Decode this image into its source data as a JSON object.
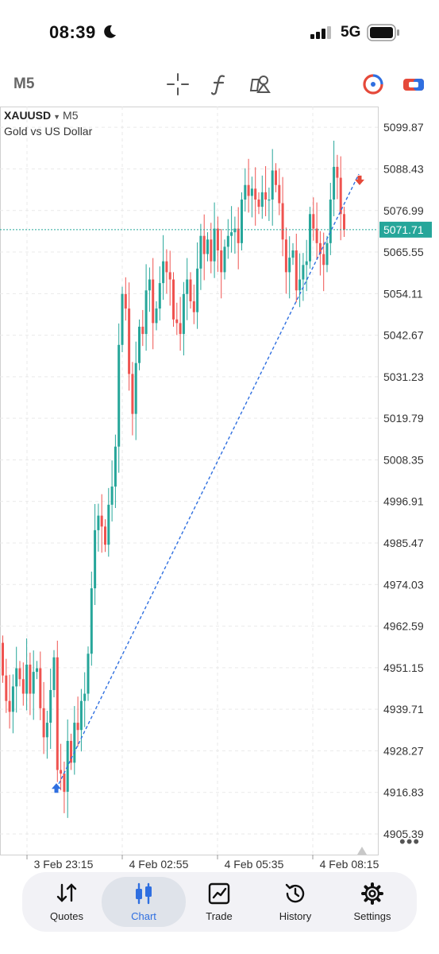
{
  "status_bar": {
    "time": "08:39",
    "network": "5G"
  },
  "toolbar": {
    "timeframe": "M5",
    "icons": [
      "crosshair-icon",
      "function-icon",
      "objects-icon",
      "one-click-trading-icon",
      "trade-panel-icon"
    ]
  },
  "chart_header": {
    "symbol": "XAUUSD",
    "period": "M5",
    "description": "Gold vs US Dollar"
  },
  "colors": {
    "bull": "#26a69a",
    "bear": "#ef5350",
    "accent": "#2f6fe0",
    "price_line": "#26a69a"
  },
  "chart_data": {
    "type": "candlestick",
    "ylim": [
      4899.7,
      5105.6
    ],
    "y_ticks": [
      "5099.87",
      "5088.43",
      "5076.99",
      "5065.55",
      "5054.11",
      "5042.67",
      "5031.23",
      "5019.79",
      "5008.35",
      "4996.91",
      "4985.47",
      "4974.03",
      "4962.59",
      "4951.15",
      "4939.71",
      "4928.27",
      "4916.83",
      "4905.39"
    ],
    "x_ticks": [
      "3 Feb 23:15",
      "4 Feb 02:55",
      "4 Feb 05:35",
      "4 Feb 08:15"
    ],
    "current_price": "5071.71",
    "trend_line": {
      "from": [
        "3 Feb 23:05",
        4917.8
      ],
      "to": [
        "4 Feb 08:30",
        5087.0
      ]
    },
    "arrows": [
      {
        "kind": "buy",
        "time": "3 Feb 23:05",
        "price": 4917.8
      },
      {
        "kind": "sell",
        "time": "4 Feb 08:30",
        "price": 5085.5
      }
    ],
    "closes": [
      4949,
      4942,
      4939,
      4946,
      4951,
      4948,
      4944,
      4952,
      4944,
      4950,
      4951,
      4940,
      4932,
      4936,
      4945,
      4954,
      4923,
      4922,
      4917,
      4931,
      4925,
      4936,
      4934,
      4942,
      4944,
      4955,
      4973,
      4989,
      4993,
      4990,
      4985,
      4996,
      5001,
      5012,
      5040,
      5054,
      5050,
      5032,
      5021,
      5035,
      5045,
      5043,
      5055,
      5058,
      5046,
      5050,
      5057,
      5063,
      5060,
      5058,
      5047,
      5046,
      5043,
      5054,
      5058,
      5052,
      5049,
      5061,
      5070,
      5065,
      5069,
      5063,
      5072,
      5066,
      5060,
      5067,
      5070,
      5071,
      5072,
      5068,
      5080,
      5084,
      5081,
      5083,
      5080,
      5078,
      5082,
      5080,
      5080,
      5088,
      5084,
      5079,
      5069,
      5060,
      5064,
      5066,
      5055,
      5058,
      5062,
      5063,
      5076,
      5072,
      5068,
      5065,
      5062,
      5068,
      5080,
      5089,
      5086,
      5076,
      5071.71
    ]
  },
  "nav": {
    "items": [
      {
        "label": "Quotes",
        "icon": "quotes-icon"
      },
      {
        "label": "Chart",
        "icon": "chart-icon"
      },
      {
        "label": "Trade",
        "icon": "trade-icon"
      },
      {
        "label": "History",
        "icon": "history-icon"
      },
      {
        "label": "Settings",
        "icon": "settings-icon"
      }
    ],
    "active": "Chart"
  }
}
